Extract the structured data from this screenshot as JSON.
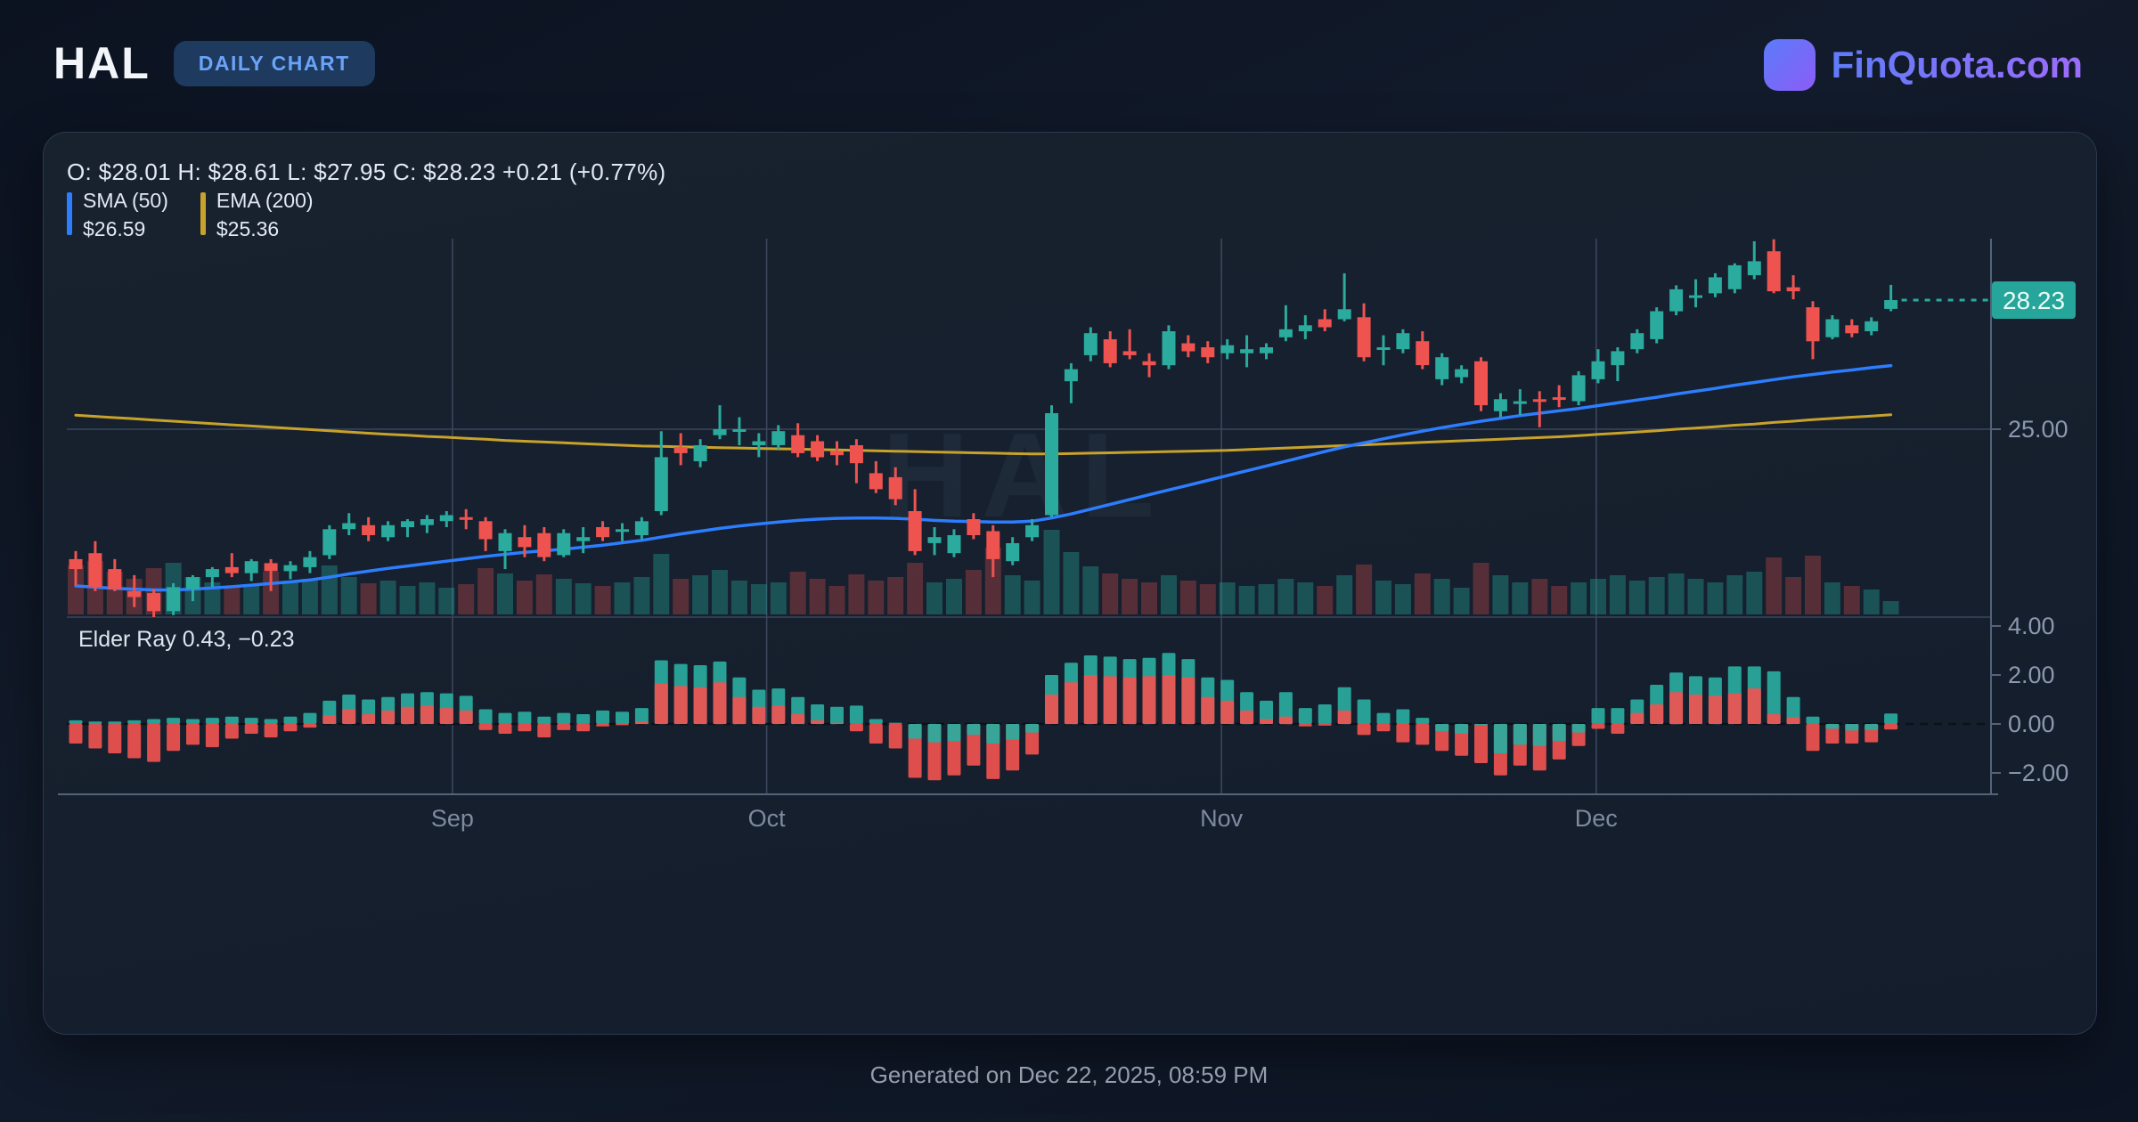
{
  "header": {
    "symbol": "HAL",
    "badge": "DAILY CHART",
    "brand": "FinQuota.com"
  },
  "ohlc_line": "O: $28.01 H: $28.61 L: $27.95 C: $28.23 +0.21 (+0.77%)",
  "legend": {
    "sma_label": "SMA (50)",
    "sma_value": "$26.59",
    "sma_color": "#2d7dff",
    "ema_label": "EMA (200)",
    "ema_value": "$25.36",
    "ema_color": "#c8a22b"
  },
  "elder_panel_label": "Elder Ray 0.43, −0.23",
  "watermark": "HAL",
  "footer": "Generated on Dec 22, 2025, 08:59 PM",
  "colors": {
    "up": "#2aab9e",
    "down": "#ef5350",
    "vol_up": "rgba(38,166,154,0.38)",
    "vol_down": "rgba(236,83,80,0.30)",
    "sma": "#2d7dff",
    "ema": "#c8a22b",
    "grid": "#3a465c",
    "axis": "#55637a",
    "axis_text": "#8b98ae",
    "month_text": "#7e8aa0",
    "last_price_bg": "#26a69a",
    "last_price_text": "#eafaf6",
    "elder_zero": "#0d1117"
  },
  "chart_data": {
    "type": "candlestick+volume+elder_ray",
    "title": "HAL daily chart with SMA(50), EMA(200), volume and Elder Ray",
    "price_axis_labels": [
      {
        "value": 25.0,
        "label": "25.00"
      }
    ],
    "last_price": {
      "value": 28.23,
      "label": "28.23"
    },
    "elder_axis_labels": [
      {
        "value": 4,
        "label": "4.00"
      },
      {
        "value": 2,
        "label": "2.00"
      },
      {
        "value": 0,
        "label": "0.00"
      },
      {
        "value": -2,
        "label": "−2.00"
      }
    ],
    "months": [
      {
        "label": "Sep",
        "i": 19.3
      },
      {
        "label": "Oct",
        "i": 35.4
      },
      {
        "label": "Nov",
        "i": 58.7
      },
      {
        "label": "Dec",
        "i": 77.9
      }
    ],
    "candles": [
      [
        21.75,
        21.95,
        21.1,
        21.5
      ],
      [
        21.9,
        22.2,
        20.95,
        21.05
      ],
      [
        21.5,
        21.75,
        20.95,
        21.0
      ],
      [
        20.95,
        21.35,
        20.55,
        20.8
      ],
      [
        20.9,
        21.0,
        20.3,
        20.45
      ],
      [
        20.45,
        21.15,
        20.35,
        21.05
      ],
      [
        21.0,
        21.35,
        20.7,
        21.3
      ],
      [
        21.3,
        21.55,
        21.05,
        21.5
      ],
      [
        21.55,
        21.9,
        21.3,
        21.4
      ],
      [
        21.4,
        21.75,
        21.2,
        21.7
      ],
      [
        21.65,
        21.75,
        20.95,
        21.45
      ],
      [
        21.45,
        21.7,
        21.25,
        21.6
      ],
      [
        21.55,
        21.95,
        21.4,
        21.8
      ],
      [
        21.85,
        22.6,
        21.75,
        22.5
      ],
      [
        22.5,
        22.9,
        22.35,
        22.65
      ],
      [
        22.6,
        22.8,
        22.2,
        22.35
      ],
      [
        22.3,
        22.7,
        22.2,
        22.6
      ],
      [
        22.55,
        22.75,
        22.3,
        22.7
      ],
      [
        22.6,
        22.85,
        22.4,
        22.75
      ],
      [
        22.7,
        22.95,
        22.55,
        22.85
      ],
      [
        22.8,
        23.0,
        22.5,
        22.75
      ],
      [
        22.7,
        22.8,
        21.95,
        22.25
      ],
      [
        21.95,
        22.5,
        21.5,
        22.4
      ],
      [
        22.3,
        22.6,
        21.8,
        22.05
      ],
      [
        22.4,
        22.55,
        21.7,
        21.8
      ],
      [
        21.85,
        22.5,
        21.8,
        22.4
      ],
      [
        22.2,
        22.55,
        21.9,
        22.3
      ],
      [
        22.55,
        22.7,
        22.2,
        22.3
      ],
      [
        22.45,
        22.65,
        22.2,
        22.5
      ],
      [
        22.35,
        22.8,
        22.25,
        22.7
      ],
      [
        22.95,
        24.95,
        22.85,
        24.3
      ],
      [
        24.55,
        24.9,
        24.1,
        24.4
      ],
      [
        24.2,
        24.75,
        24.05,
        24.6
      ],
      [
        24.85,
        25.6,
        24.75,
        25.0
      ],
      [
        24.95,
        25.3,
        24.6,
        25.0
      ],
      [
        24.6,
        24.9,
        24.3,
        24.7
      ],
      [
        24.6,
        25.1,
        24.5,
        24.95
      ],
      [
        24.85,
        25.15,
        24.3,
        24.4
      ],
      [
        24.7,
        24.85,
        24.2,
        24.3
      ],
      [
        24.45,
        24.7,
        24.1,
        24.35
      ],
      [
        24.6,
        24.75,
        23.65,
        24.15
      ],
      [
        23.9,
        24.2,
        23.4,
        23.5
      ],
      [
        23.8,
        24.05,
        23.1,
        23.25
      ],
      [
        22.95,
        23.5,
        21.85,
        21.95
      ],
      [
        22.15,
        22.55,
        21.85,
        22.3
      ],
      [
        21.9,
        22.5,
        21.8,
        22.35
      ],
      [
        22.75,
        22.9,
        22.25,
        22.35
      ],
      [
        22.45,
        22.6,
        21.3,
        21.75
      ],
      [
        21.7,
        22.3,
        21.6,
        22.15
      ],
      [
        22.3,
        22.75,
        22.2,
        22.6
      ],
      [
        22.85,
        25.6,
        22.8,
        25.4
      ],
      [
        26.2,
        26.65,
        25.65,
        26.5
      ],
      [
        26.85,
        27.55,
        26.7,
        27.4
      ],
      [
        27.25,
        27.45,
        26.55,
        26.65
      ],
      [
        26.95,
        27.5,
        26.75,
        26.85
      ],
      [
        26.7,
        26.9,
        26.3,
        26.6
      ],
      [
        26.6,
        27.6,
        26.5,
        27.45
      ],
      [
        27.15,
        27.35,
        26.8,
        26.95
      ],
      [
        27.05,
        27.2,
        26.65,
        26.8
      ],
      [
        26.9,
        27.25,
        26.75,
        27.1
      ],
      [
        26.9,
        27.35,
        26.55,
        27.0
      ],
      [
        26.9,
        27.15,
        26.75,
        27.05
      ],
      [
        27.3,
        28.1,
        27.2,
        27.5
      ],
      [
        27.45,
        27.85,
        27.25,
        27.6
      ],
      [
        27.75,
        28.0,
        27.45,
        27.55
      ],
      [
        27.75,
        28.9,
        27.7,
        28.0
      ],
      [
        27.8,
        28.15,
        26.7,
        26.8
      ],
      [
        27.0,
        27.35,
        26.6,
        27.05
      ],
      [
        27.0,
        27.5,
        26.9,
        27.4
      ],
      [
        27.2,
        27.45,
        26.5,
        26.6
      ],
      [
        26.25,
        26.9,
        26.1,
        26.8
      ],
      [
        26.3,
        26.6,
        26.15,
        26.5
      ],
      [
        26.7,
        26.8,
        25.45,
        25.6
      ],
      [
        25.45,
        25.9,
        25.3,
        25.75
      ],
      [
        25.7,
        26.0,
        25.35,
        25.7
      ],
      [
        25.75,
        25.95,
        25.05,
        25.7
      ],
      [
        25.8,
        26.1,
        25.55,
        25.75
      ],
      [
        25.7,
        26.45,
        25.6,
        26.35
      ],
      [
        26.25,
        27.0,
        26.15,
        26.7
      ],
      [
        26.6,
        27.05,
        26.2,
        26.95
      ],
      [
        27.0,
        27.5,
        26.9,
        27.4
      ],
      [
        27.25,
        28.05,
        27.15,
        27.95
      ],
      [
        27.95,
        28.6,
        27.85,
        28.5
      ],
      [
        28.3,
        28.75,
        28.05,
        28.35
      ],
      [
        28.4,
        28.9,
        28.3,
        28.8
      ],
      [
        28.5,
        29.15,
        28.4,
        29.1
      ],
      [
        28.85,
        29.7,
        28.75,
        29.2
      ],
      [
        29.45,
        29.75,
        28.4,
        28.45
      ],
      [
        28.55,
        28.85,
        28.25,
        28.45
      ],
      [
        28.05,
        28.2,
        26.75,
        27.2
      ],
      [
        27.3,
        27.85,
        27.25,
        27.75
      ],
      [
        27.6,
        27.75,
        27.3,
        27.4
      ],
      [
        27.45,
        27.8,
        27.35,
        27.7
      ],
      [
        28.01,
        28.61,
        27.95,
        28.23
      ]
    ],
    "volume": [
      55,
      60,
      48,
      40,
      52,
      58,
      42,
      36,
      30,
      34,
      48,
      38,
      40,
      55,
      42,
      35,
      38,
      32,
      36,
      30,
      34,
      52,
      46,
      38,
      45,
      40,
      35,
      32,
      36,
      42,
      68,
      40,
      44,
      50,
      38,
      34,
      36,
      48,
      40,
      32,
      45,
      38,
      42,
      58,
      36,
      40,
      50,
      75,
      44,
      38,
      95,
      70,
      54,
      46,
      40,
      36,
      44,
      38,
      34,
      36,
      32,
      34,
      40,
      36,
      32,
      44,
      56,
      38,
      34,
      46,
      40,
      30,
      58,
      44,
      36,
      40,
      32,
      36,
      40,
      44,
      38,
      42,
      46,
      40,
      36,
      44,
      48,
      64,
      42,
      66,
      36,
      32,
      28,
      15
    ],
    "sma50": [
      21.08,
      21.05,
      21.02,
      21.0,
      20.98,
      20.98,
      21.0,
      21.03,
      21.06,
      21.1,
      21.14,
      21.18,
      21.23,
      21.3,
      21.38,
      21.45,
      21.52,
      21.58,
      21.64,
      21.7,
      21.76,
      21.82,
      21.87,
      21.92,
      21.96,
      22.0,
      22.05,
      22.1,
      22.16,
      22.22,
      22.3,
      22.38,
      22.45,
      22.52,
      22.58,
      22.63,
      22.68,
      22.72,
      22.75,
      22.77,
      22.78,
      22.78,
      22.77,
      22.75,
      22.72,
      22.7,
      22.69,
      22.68,
      22.68,
      22.7,
      22.78,
      22.88,
      23.0,
      23.12,
      23.24,
      23.36,
      23.48,
      23.6,
      23.72,
      23.84,
      23.96,
      24.08,
      24.2,
      24.32,
      24.44,
      24.56,
      24.66,
      24.76,
      24.86,
      24.95,
      25.04,
      25.12,
      25.2,
      25.27,
      25.34,
      25.4,
      25.46,
      25.52,
      25.59,
      25.66,
      25.73,
      25.8,
      25.88,
      25.95,
      26.02,
      26.1,
      26.17,
      26.24,
      26.31,
      26.37,
      26.43,
      26.48,
      26.54,
      26.59
    ],
    "ema200": [
      25.35,
      25.32,
      25.29,
      25.26,
      25.23,
      25.2,
      25.17,
      25.14,
      25.11,
      25.08,
      25.05,
      25.02,
      24.99,
      24.96,
      24.93,
      24.9,
      24.87,
      24.85,
      24.82,
      24.8,
      24.77,
      24.75,
      24.72,
      24.7,
      24.68,
      24.66,
      24.64,
      24.62,
      24.6,
      24.58,
      24.57,
      24.56,
      24.55,
      24.54,
      24.53,
      24.52,
      24.51,
      24.5,
      24.49,
      24.48,
      24.47,
      24.46,
      24.45,
      24.44,
      24.43,
      24.42,
      24.41,
      24.4,
      24.39,
      24.38,
      24.38,
      24.39,
      24.4,
      24.41,
      24.42,
      24.43,
      24.44,
      24.45,
      24.46,
      24.47,
      24.49,
      24.51,
      24.53,
      24.55,
      24.57,
      24.59,
      24.61,
      24.63,
      24.65,
      24.67,
      24.69,
      24.71,
      24.73,
      24.75,
      24.77,
      24.79,
      24.81,
      24.84,
      24.87,
      24.9,
      24.93,
      24.96,
      25.0,
      25.03,
      25.06,
      25.1,
      25.13,
      25.17,
      25.2,
      25.24,
      25.27,
      25.3,
      25.33,
      25.36
    ],
    "elder_ray": [
      [
        0.15,
        -0.8
      ],
      [
        0.1,
        -1.0
      ],
      [
        0.1,
        -1.2
      ],
      [
        0.15,
        -1.4
      ],
      [
        0.2,
        -1.55
      ],
      [
        0.25,
        -1.1
      ],
      [
        0.2,
        -0.85
      ],
      [
        0.25,
        -0.95
      ],
      [
        0.3,
        -0.6
      ],
      [
        0.25,
        -0.4
      ],
      [
        0.2,
        -0.55
      ],
      [
        0.3,
        -0.3
      ],
      [
        0.45,
        -0.15
      ],
      [
        0.95,
        0.35
      ],
      [
        1.2,
        0.6
      ],
      [
        1.0,
        0.4
      ],
      [
        1.1,
        0.55
      ],
      [
        1.25,
        0.7
      ],
      [
        1.3,
        0.75
      ],
      [
        1.25,
        0.65
      ],
      [
        1.15,
        0.55
      ],
      [
        0.6,
        -0.25
      ],
      [
        0.45,
        -0.4
      ],
      [
        0.5,
        -0.3
      ],
      [
        0.3,
        -0.55
      ],
      [
        0.45,
        -0.25
      ],
      [
        0.4,
        -0.3
      ],
      [
        0.55,
        -0.1
      ],
      [
        0.5,
        -0.05
      ],
      [
        0.65,
        0.1
      ],
      [
        2.6,
        1.65
      ],
      [
        2.45,
        1.55
      ],
      [
        2.4,
        1.5
      ],
      [
        2.55,
        1.7
      ],
      [
        1.9,
        1.1
      ],
      [
        1.4,
        0.7
      ],
      [
        1.45,
        0.75
      ],
      [
        1.1,
        0.4
      ],
      [
        0.8,
        0.15
      ],
      [
        0.7,
        0.05
      ],
      [
        0.75,
        -0.3
      ],
      [
        0.2,
        -0.8
      ],
      [
        0.05,
        -1.0
      ],
      [
        -0.6,
        -2.2
      ],
      [
        -0.75,
        -2.3
      ],
      [
        -0.7,
        -2.1
      ],
      [
        -0.45,
        -1.7
      ],
      [
        -0.8,
        -2.25
      ],
      [
        -0.65,
        -1.9
      ],
      [
        -0.35,
        -1.25
      ],
      [
        2.0,
        1.2
      ],
      [
        2.5,
        1.7
      ],
      [
        2.8,
        2.0
      ],
      [
        2.75,
        1.95
      ],
      [
        2.65,
        1.9
      ],
      [
        2.7,
        1.95
      ],
      [
        2.9,
        2.0
      ],
      [
        2.65,
        1.9
      ],
      [
        1.9,
        1.1
      ],
      [
        1.8,
        0.95
      ],
      [
        1.3,
        0.55
      ],
      [
        0.95,
        0.2
      ],
      [
        1.3,
        0.3
      ],
      [
        0.65,
        -0.1
      ],
      [
        0.8,
        -0.07
      ],
      [
        1.5,
        0.55
      ],
      [
        1.0,
        -0.45
      ],
      [
        0.45,
        -0.3
      ],
      [
        0.6,
        -0.75
      ],
      [
        0.25,
        -0.85
      ],
      [
        -0.3,
        -1.1
      ],
      [
        -0.4,
        -1.3
      ],
      [
        -0.05,
        -1.6
      ],
      [
        -1.2,
        -2.1
      ],
      [
        -0.85,
        -1.7
      ],
      [
        -0.9,
        -1.9
      ],
      [
        -0.7,
        -1.45
      ],
      [
        -0.35,
        -0.9
      ],
      [
        0.65,
        -0.2
      ],
      [
        0.65,
        -0.4
      ],
      [
        1.0,
        0.45
      ],
      [
        1.6,
        0.8
      ],
      [
        2.1,
        1.3
      ],
      [
        1.95,
        1.2
      ],
      [
        1.9,
        1.15
      ],
      [
        2.35,
        1.25
      ],
      [
        2.35,
        1.45
      ],
      [
        2.15,
        0.4
      ],
      [
        1.1,
        0.27
      ],
      [
        0.3,
        -1.1
      ],
      [
        -0.2,
        -0.8
      ],
      [
        -0.27,
        -0.8
      ],
      [
        -0.25,
        -0.75
      ],
      [
        0.43,
        -0.23
      ]
    ]
  }
}
